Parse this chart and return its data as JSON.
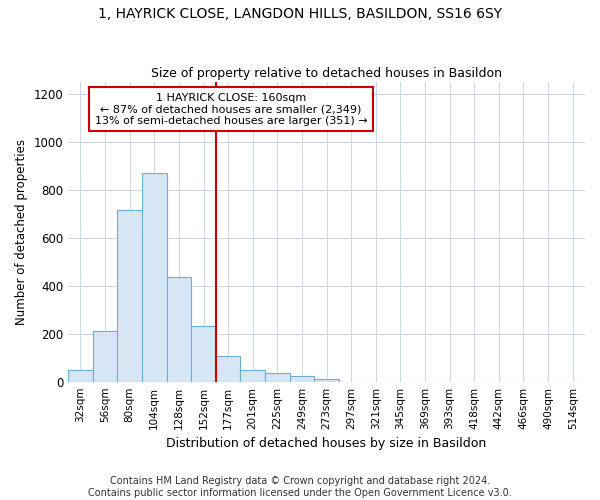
{
  "title1": "1, HAYRICK CLOSE, LANGDON HILLS, BASILDON, SS16 6SY",
  "title2": "Size of property relative to detached houses in Basildon",
  "xlabel": "Distribution of detached houses by size in Basildon",
  "ylabel": "Number of detached properties",
  "footer": "Contains HM Land Registry data © Crown copyright and database right 2024.\nContains public sector information licensed under the Open Government Licence v3.0.",
  "bar_labels": [
    "32sqm",
    "56sqm",
    "80sqm",
    "104sqm",
    "128sqm",
    "152sqm",
    "177sqm",
    "201sqm",
    "225sqm",
    "249sqm",
    "273sqm",
    "297sqm",
    "321sqm",
    "345sqm",
    "369sqm",
    "393sqm",
    "418sqm",
    "442sqm",
    "466sqm",
    "490sqm",
    "514sqm"
  ],
  "bar_values": [
    50,
    210,
    715,
    870,
    438,
    233,
    107,
    48,
    37,
    25,
    10,
    0,
    0,
    0,
    0,
    0,
    0,
    0,
    0,
    0,
    0
  ],
  "bar_color": "#d6e6f5",
  "bar_edge_color": "#6baed6",
  "vline_x": 5.5,
  "vline_color": "#cc0000",
  "annotation_title": "1 HAYRICK CLOSE: 160sqm",
  "annotation_line1": "← 87% of detached houses are smaller (2,349)",
  "annotation_line2": "13% of semi-detached houses are larger (351) →",
  "annotation_box_color": "#cc0000",
  "ylim": [
    0,
    1250
  ],
  "yticks": [
    0,
    200,
    400,
    600,
    800,
    1000,
    1200
  ],
  "grid_color": "#c8d8ec",
  "background_color": "#ffffff"
}
